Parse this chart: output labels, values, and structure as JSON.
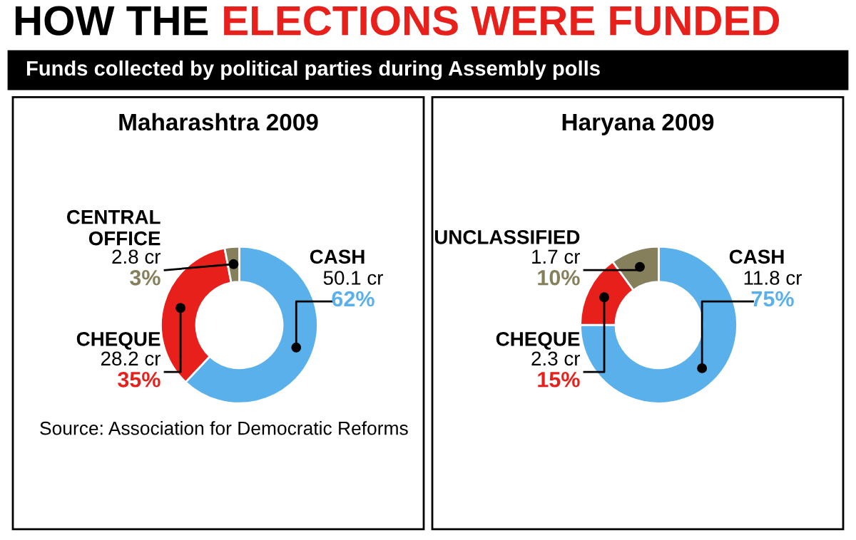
{
  "chart_data": [
    {
      "type": "other",
      "title": "HOW THE ELECTIONS WERE FUNDED",
      "subtitle": "Funds collected by political parties during Assembly polls"
    },
    {
      "type": "donut",
      "title": "Maharashtra 2009",
      "categories": [
        "CASH",
        "CHEQUE",
        "CENTRAL OFFICE"
      ],
      "values": [
        62,
        35,
        3
      ],
      "colors": [
        "#5ab0ea",
        "#e8201c",
        "#857f5c"
      ],
      "value_labels": [
        "50.1 cr\n62%",
        "28.2 cr\n35%",
        "2.8 cr\n3%"
      ],
      "annotations": [
        "Source: Association for Democratic Reforms"
      ]
    },
    {
      "type": "donut",
      "title": "Haryana 2009",
      "categories": [
        "CASH",
        "CHEQUE",
        "UNCLASSIFIED"
      ],
      "values": [
        75,
        15,
        10
      ],
      "colors": [
        "#5ab0ea",
        "#e8201c",
        "#857f5c"
      ],
      "value_labels": [
        "11.8 cr\n75%",
        "2.3 cr\n15%",
        "1.7 cr\n10%"
      ]
    }
  ]
}
